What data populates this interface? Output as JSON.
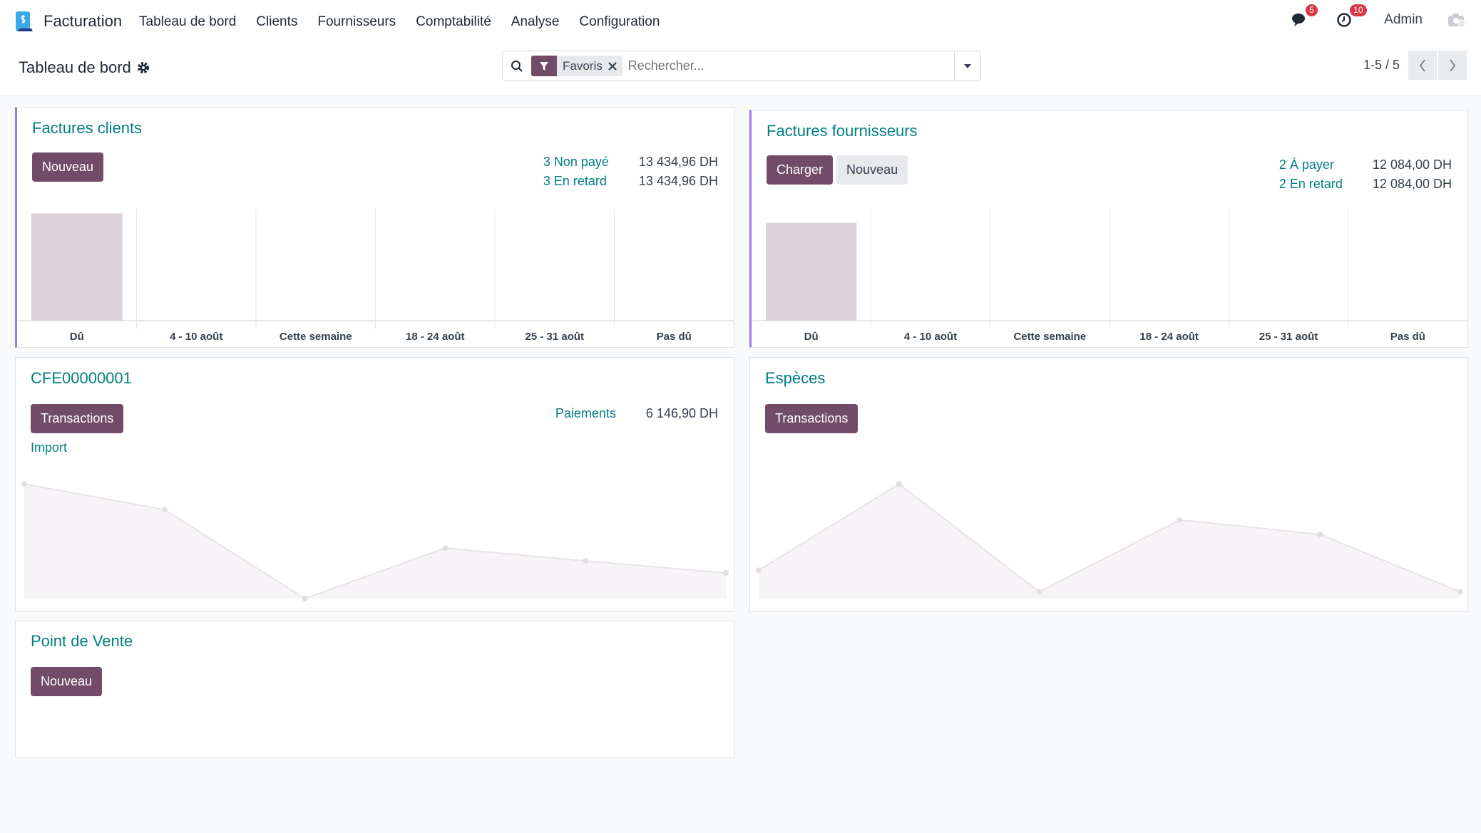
{
  "nav": {
    "brand": "Facturation",
    "menu": [
      "Tableau de bord",
      "Clients",
      "Fournisseurs",
      "Comptabilité",
      "Analyse",
      "Configuration"
    ],
    "messages_count": "5",
    "activities_count": "10",
    "user": "Admin"
  },
  "control": {
    "title": "Tableau de bord",
    "facet": "Favoris",
    "search_placeholder": "Rechercher...",
    "pager": "1-5 / 5"
  },
  "cards": {
    "clients": {
      "title": "Factures clients",
      "new": "Nouveau",
      "stats": [
        {
          "label": "3 Non payé",
          "value": "13 434,96 DH"
        },
        {
          "label": "3 En retard",
          "value": "13 434,96 DH"
        }
      ]
    },
    "suppliers": {
      "title": "Factures fournisseurs",
      "upload": "Charger",
      "new": "Nouveau",
      "stats": [
        {
          "label": "2 À payer",
          "value": "12 084,00 DH"
        },
        {
          "label": "2 En retard",
          "value": "12 084,00 DH"
        }
      ]
    },
    "bank": {
      "title": "CFE00000001",
      "transactions": "Transactions",
      "import": "Import",
      "stat_label": "Paiements",
      "stat_value": "6 146,90 DH"
    },
    "cash": {
      "title": "Espèces",
      "transactions": "Transactions"
    },
    "pos": {
      "title": "Point de Vente",
      "new": "Nouveau"
    }
  },
  "colors": {
    "primary": "#714B67",
    "link": "#017e84",
    "bar": "#dcd2d9"
  },
  "chart_data": [
    {
      "type": "bar",
      "categories": [
        "Dû",
        "4 - 10 août",
        "Cette semaine",
        "18 - 24 août",
        "25 - 31 août",
        "Pas dû"
      ],
      "values": [
        13434.96,
        0,
        0,
        0,
        0,
        0
      ],
      "ylim": [
        0,
        14000
      ]
    },
    {
      "type": "bar",
      "categories": [
        "Dû",
        "4 - 10 août",
        "Cette semaine",
        "18 - 24 août",
        "25 - 31 août",
        "Pas dû"
      ],
      "values": [
        12084,
        0,
        0,
        0,
        0,
        0
      ],
      "ylim": [
        0,
        13800
      ]
    },
    {
      "type": "area",
      "values": [
        134,
        104,
        0,
        59,
        44,
        30
      ],
      "ylim": [
        0,
        140
      ]
    },
    {
      "type": "area",
      "values": [
        33,
        134,
        8,
        92,
        75,
        8
      ],
      "ylim": [
        0,
        140
      ]
    }
  ]
}
